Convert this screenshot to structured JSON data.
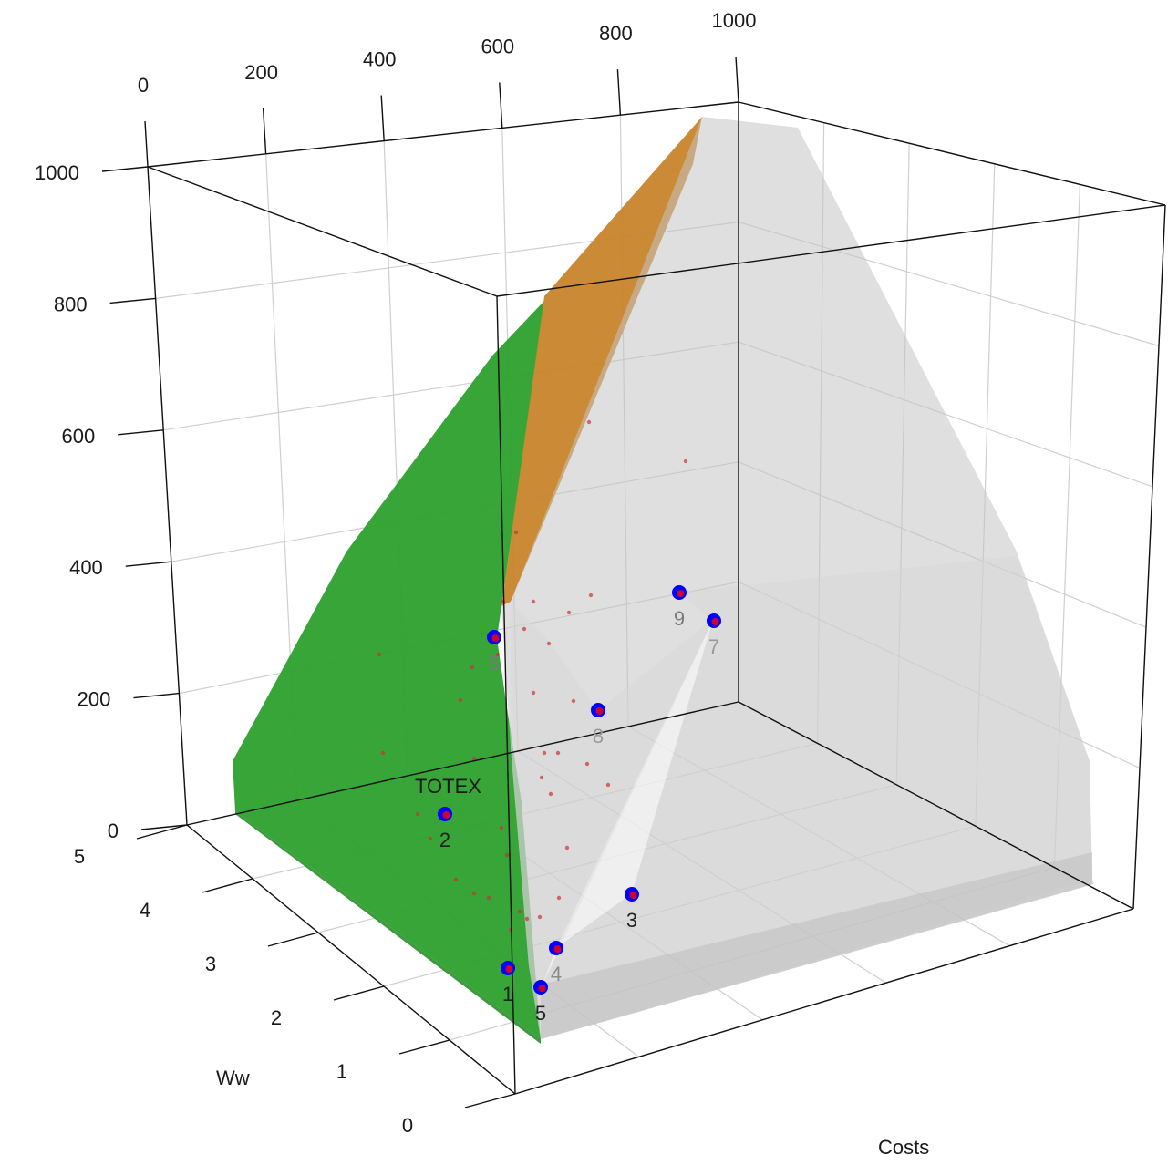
{
  "chart_data": {
    "type": "scatter",
    "projection": "3d",
    "xlabel": "Costs",
    "ylabel": "Ww",
    "zlabel": "",
    "xlim": [
      0,
      1000
    ],
    "ylim": [
      0,
      5
    ],
    "zlim": [
      0,
      1000
    ],
    "x_ticks": [
      "0",
      "200",
      "400",
      "600",
      "800",
      "1000"
    ],
    "y_ticks": [
      "0",
      "1",
      "2",
      "3",
      "4",
      "5"
    ],
    "z_ticks": [
      "0",
      "200",
      "400",
      "600",
      "800",
      "1000"
    ],
    "grid": true,
    "annotation": "TOTEX",
    "colors": {
      "green_region": "#2ca02c",
      "orange_region": "#c8842a",
      "grey_region": "#c8c8c8",
      "point_fill": "#0000ff",
      "point_center": "#ff0000",
      "noise_point": "#cc3333"
    },
    "series": [
      {
        "points": [
          {
            "label": "1",
            "x": 40,
            "y": 0.4,
            "z": 60
          },
          {
            "label": "2",
            "x": 20,
            "y": 2.5,
            "z": 100
          },
          {
            "label": "3",
            "x": 320,
            "y": 0.5,
            "z": 40
          },
          {
            "label": "4",
            "x": 130,
            "y": 0.2,
            "z": 100
          },
          {
            "label": "5",
            "x": 160,
            "y": 0.0,
            "z": 50
          },
          {
            "label": "6",
            "x": 100,
            "y": 1.8,
            "z": 420
          },
          {
            "label": "7",
            "x": 700,
            "y": 0.8,
            "z": 380
          },
          {
            "label": "8",
            "x": 380,
            "y": 1.0,
            "z": 250
          },
          {
            "label": "9",
            "x": 630,
            "y": 2.0,
            "z": 400
          }
        ]
      }
    ]
  }
}
